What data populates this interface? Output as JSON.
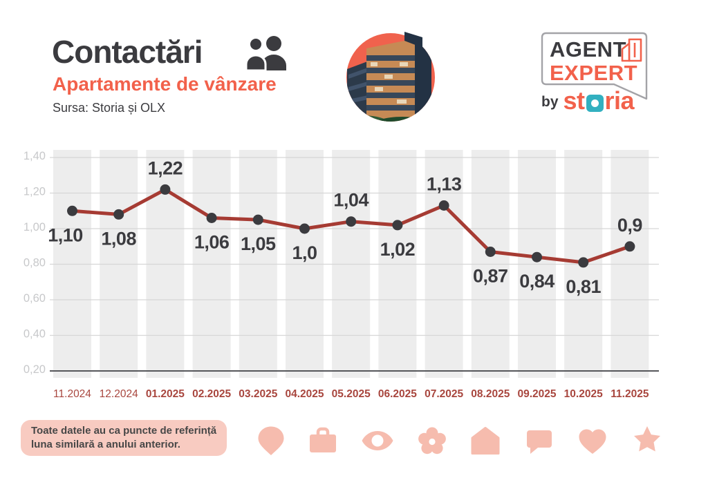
{
  "header": {
    "title": "Contactări",
    "subtitle": "Apartamente de vânzare",
    "source": "Sursa: Storia și OLX"
  },
  "logo": {
    "agent": "AGENT",
    "expert": "EXPERT",
    "by": "by",
    "brand": "storia",
    "brand_start": "st",
    "brand_end": "ria"
  },
  "chart_data": {
    "type": "line",
    "title": "Contactări — Apartamente de vânzare",
    "categories": [
      "11.2024",
      "12.2024",
      "01.2025",
      "02.2025",
      "03.2025",
      "04.2025",
      "05.2025",
      "06.2025",
      "07.2025",
      "08.2025",
      "09.2025",
      "10.2025",
      "11.2025"
    ],
    "values": [
      1.1,
      1.08,
      1.22,
      1.06,
      1.05,
      1.0,
      1.04,
      1.02,
      1.13,
      0.87,
      0.84,
      0.81,
      0.9
    ],
    "point_labels": [
      "1,10",
      "1,08",
      "1,22",
      "1,06",
      "1,05",
      "1,0",
      "1,04",
      "1,02",
      "1,13",
      "0,87",
      "0,84",
      "0,81",
      "0,9"
    ],
    "label_side": [
      "below",
      "below",
      "above",
      "below",
      "below",
      "below",
      "above",
      "below",
      "above",
      "below",
      "below",
      "below",
      "above"
    ],
    "x_tick_bold": [
      false,
      false,
      true,
      true,
      true,
      true,
      true,
      true,
      true,
      true,
      true,
      true,
      true
    ],
    "y_tick_labels": [
      "1,40",
      "1,20",
      "1,00",
      "0,80",
      "0,60",
      "0,40",
      "0,20"
    ],
    "y_tick_values": [
      1.4,
      1.2,
      1.0,
      0.8,
      0.6,
      0.4,
      0.2
    ],
    "ylim": [
      0.2,
      1.45
    ],
    "xlabel": "",
    "ylabel": "",
    "grid": true,
    "legend": false,
    "colors": {
      "line": "#A63B33",
      "point": "#3B3B3F",
      "band": "#EDEDED",
      "grid": "#D6D6D6",
      "baseline": "#55565A",
      "y_tick_text": "#C7C8CA",
      "x_tick_text": "#A8463E",
      "label_text": "#3B3B3F"
    }
  },
  "footer": {
    "note_line1": "Toate datele au ca puncte de referință",
    "note_line2": "luna similară a anului anterior.",
    "icons": [
      "pin-icon",
      "briefcase-icon",
      "eye-icon",
      "flower-icon",
      "house-icon",
      "chat-icon",
      "heart-icon",
      "star-icon"
    ],
    "icon_color": "#F6BCAE",
    "note_bg": "#F8CBC1"
  },
  "colors": {
    "accent": "#F2614B",
    "title_text": "#3B3B3F",
    "teal": "#32B0C0",
    "photo_bg": "#F0624D"
  }
}
